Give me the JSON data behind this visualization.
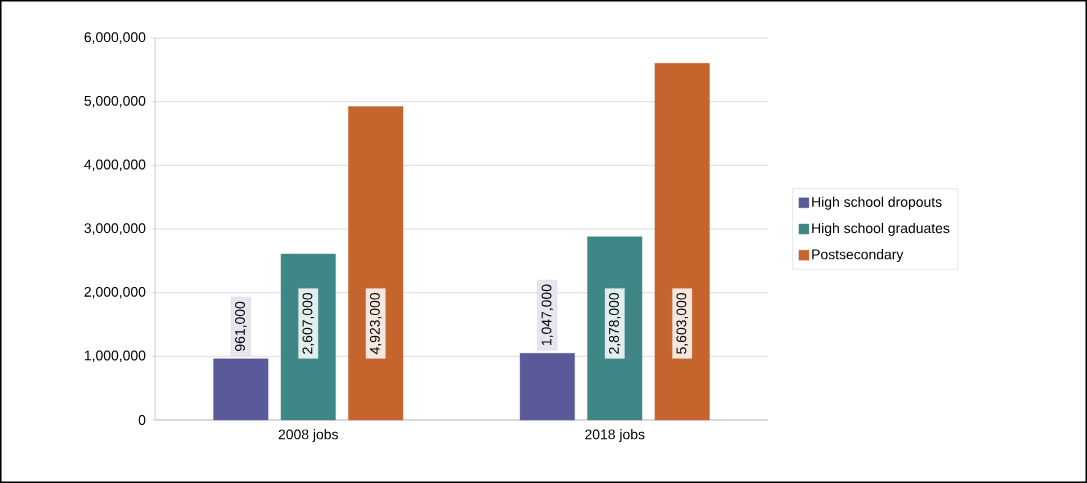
{
  "chart_data": {
    "type": "bar",
    "categories": [
      "2008 jobs",
      "2018 jobs"
    ],
    "series": [
      {
        "name": "High school dropouts",
        "color": "#5a5a9a",
        "values": [
          961000,
          1047000
        ],
        "value_labels": [
          "961,000",
          "1,047,000"
        ]
      },
      {
        "name": "High school graduates",
        "color": "#3f8787",
        "values": [
          2607000,
          2878000
        ],
        "value_labels": [
          "2,607,000",
          "2,878,000"
        ]
      },
      {
        "name": "Postsecondary",
        "color": "#c5642c",
        "values": [
          4923000,
          5603000
        ],
        "value_labels": [
          "4,923,000",
          "5,603,000"
        ]
      }
    ],
    "ylim": [
      0,
      6000000
    ],
    "yticks": [
      0,
      {
        "value": 1000000,
        "label": "1,000,000"
      },
      {
        "value": 2000000,
        "label": "2,000,000"
      },
      {
        "value": 3000000,
        "label": "3,000,000"
      },
      {
        "value": 4000000,
        "label": "4,000,000"
      },
      {
        "value": 5000000,
        "label": "5,000,000"
      },
      {
        "value": 6000000,
        "label": "6,000,000"
      }
    ],
    "grid": "y",
    "legend": "right"
  }
}
